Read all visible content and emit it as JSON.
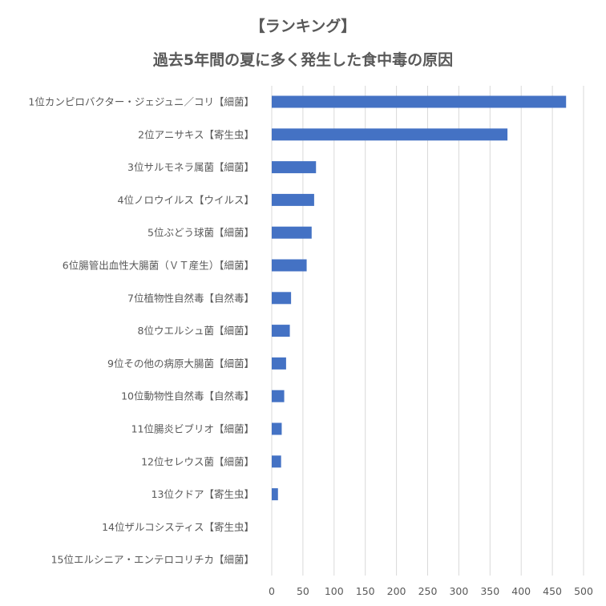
{
  "chart_data": {
    "type": "bar",
    "orientation": "horizontal",
    "title": "【ランキング】",
    "subtitle": "過去5年間の夏に多く発生した食中毒の原因",
    "categories": [
      "1位カンピロバクター・ジェジュニ／コリ【細菌】",
      "2位アニサキス【寄生虫】",
      "3位サルモネラ属菌【細菌】",
      "4位ノロウイルス【ウイルス】",
      "5位ぶどう球菌【細菌】",
      "6位腸管出血性大腸菌（ＶＴ産生）【細菌】",
      "7位植物性自然毒【自然毒】",
      "8位ウエルシュ菌【細菌】",
      "9位その他の病原大腸菌【細菌】",
      "10位動物性自然毒【自然毒】",
      "11位腸炎ビブリオ【細菌】",
      "12位セレウス菌【細菌】",
      "13位クドア【寄生虫】",
      "14位ザルコシスティス【寄生虫】",
      "15位エルシニア・エンテロコリチカ【細菌】"
    ],
    "values": [
      472,
      378,
      71,
      68,
      64,
      56,
      31,
      29,
      23,
      20,
      16,
      15,
      10,
      0,
      0
    ],
    "xlim": [
      0,
      500
    ],
    "xticks": [
      0,
      50,
      100,
      150,
      200,
      250,
      300,
      350,
      400,
      450,
      500
    ],
    "grid": true,
    "color": "#4472c4"
  }
}
